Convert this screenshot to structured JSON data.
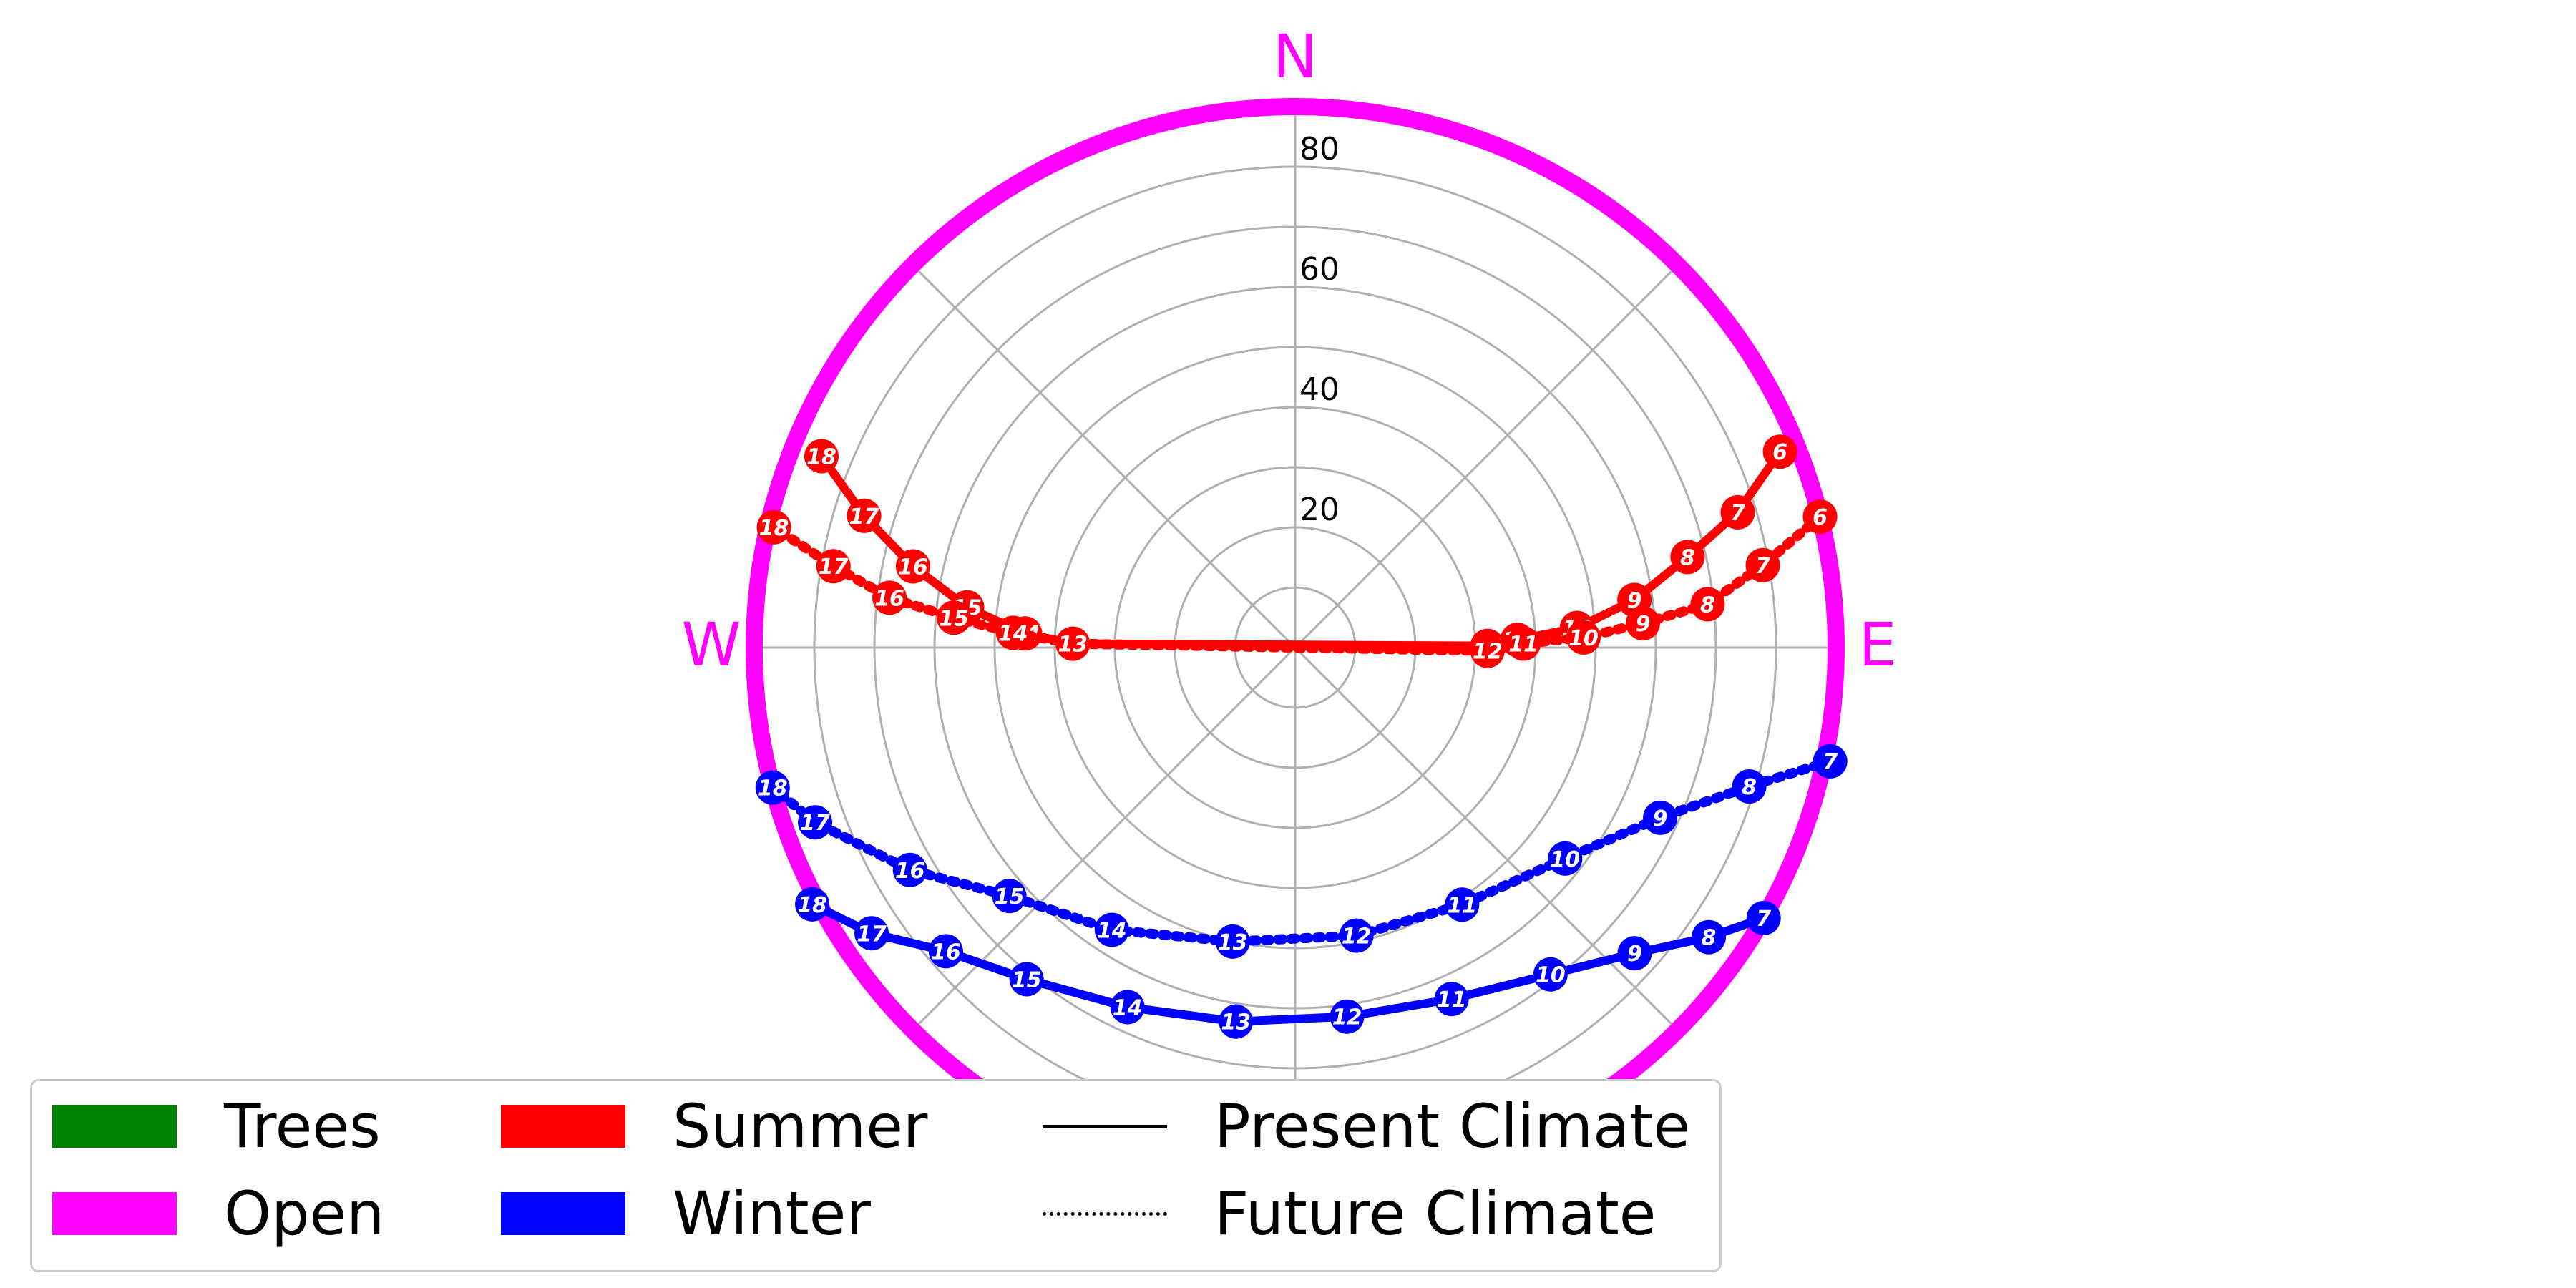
{
  "chart_data": {
    "type": "polar-sunpath",
    "cardinals": {
      "n": "N",
      "e": "E",
      "w": "W"
    },
    "r_ticks": [
      "20",
      "40",
      "60",
      "80"
    ],
    "r_max": 90,
    "boundary": {
      "name": "Open",
      "color": "#ff00ff"
    },
    "series": [
      {
        "name": "Summer",
        "climate": "Present Climate",
        "color": "#ff0000",
        "style": "solid",
        "points": [
          {
            "hour": "6",
            "az": 68,
            "alt": 3
          },
          {
            "hour": "7",
            "az": 73,
            "alt": 13
          },
          {
            "hour": "8",
            "az": 77,
            "alt": 23
          },
          {
            "hour": "9",
            "az": 82,
            "alt": 33
          },
          {
            "hour": "10",
            "az": 86,
            "alt": 43
          },
          {
            "hour": "11",
            "az": 88,
            "alt": 53
          },
          {
            "hour": "12",
            "az": 89.5,
            "alt": 58
          },
          {
            "hour": "13",
            "az": 271,
            "alt": 53
          },
          {
            "hour": "14",
            "az": 273,
            "alt": 45
          },
          {
            "hour": "15",
            "az": 277,
            "alt": 35
          },
          {
            "hour": "16",
            "az": 282,
            "alt": 25
          },
          {
            "hour": "17",
            "az": 287,
            "alt": 15
          },
          {
            "hour": "18",
            "az": 292,
            "alt": 5
          }
        ]
      },
      {
        "name": "Summer",
        "climate": "Future Climate",
        "color": "#ff0000",
        "style": "dotted",
        "points": [
          {
            "hour": "6",
            "az": 76,
            "alt": 0
          },
          {
            "hour": "7",
            "az": 80,
            "alt": 11
          },
          {
            "hour": "8",
            "az": 84,
            "alt": 21
          },
          {
            "hour": "9",
            "az": 86,
            "alt": 32
          },
          {
            "hour": "10",
            "az": 88,
            "alt": 42
          },
          {
            "hour": "11",
            "az": 89,
            "alt": 52
          },
          {
            "hour": "12",
            "az": 91,
            "alt": 58
          },
          {
            "hour": "13",
            "az": 271,
            "alt": 53
          },
          {
            "hour": "14",
            "az": 273,
            "alt": 43
          },
          {
            "hour": "15",
            "az": 275,
            "alt": 33
          },
          {
            "hour": "16",
            "az": 277,
            "alt": 22
          },
          {
            "hour": "17",
            "az": 280,
            "alt": 12
          },
          {
            "hour": "18",
            "az": 283,
            "alt": 1
          }
        ]
      },
      {
        "name": "Winter",
        "climate": "Present Climate",
        "color": "#0000ff",
        "style": "solid",
        "points": [
          {
            "hour": "7",
            "az": 120,
            "alt": 0
          },
          {
            "hour": "8",
            "az": 125,
            "alt": 6
          },
          {
            "hour": "9",
            "az": 132,
            "alt": 14
          },
          {
            "hour": "10",
            "az": 142,
            "alt": 21
          },
          {
            "hour": "11",
            "az": 156,
            "alt": 26
          },
          {
            "hour": "12",
            "az": 172,
            "alt": 28
          },
          {
            "hour": "13",
            "az": 189,
            "alt": 27
          },
          {
            "hour": "14",
            "az": 205,
            "alt": 24
          },
          {
            "hour": "15",
            "az": 219,
            "alt": 19
          },
          {
            "hour": "16",
            "az": 229,
            "alt": 13
          },
          {
            "hour": "17",
            "az": 236,
            "alt": 5
          },
          {
            "hour": "18",
            "az": 242,
            "alt": -1
          }
        ]
      },
      {
        "name": "Winter",
        "climate": "Future Climate",
        "color": "#0000ff",
        "style": "dotted",
        "points": [
          {
            "hour": "7",
            "az": 102,
            "alt": -1
          },
          {
            "hour": "8",
            "az": 107,
            "alt": 11
          },
          {
            "hour": "9",
            "az": 115,
            "alt": 23
          },
          {
            "hour": "10",
            "az": 128,
            "alt": 33
          },
          {
            "hour": "11",
            "az": 147,
            "alt": 39
          },
          {
            "hour": "12",
            "az": 168,
            "alt": 41
          },
          {
            "hour": "13",
            "az": 192,
            "alt": 40
          },
          {
            "hour": "14",
            "az": 213,
            "alt": 34
          },
          {
            "hour": "15",
            "az": 229,
            "alt": 27
          },
          {
            "hour": "16",
            "az": 240,
            "alt": 16
          },
          {
            "hour": "17",
            "az": 250,
            "alt": 5
          },
          {
            "hour": "18",
            "az": 255,
            "alt": 0
          }
        ]
      }
    ]
  },
  "legend": {
    "trees": {
      "label": "Trees",
      "color": "#008000"
    },
    "open": {
      "label": "Open",
      "color": "#ff00ff"
    },
    "summer": {
      "label": "Summer",
      "color": "#ff0000"
    },
    "winter": {
      "label": "Winter",
      "color": "#0000ff"
    },
    "present": {
      "label": "Present Climate"
    },
    "future": {
      "label": "Future Climate"
    }
  }
}
